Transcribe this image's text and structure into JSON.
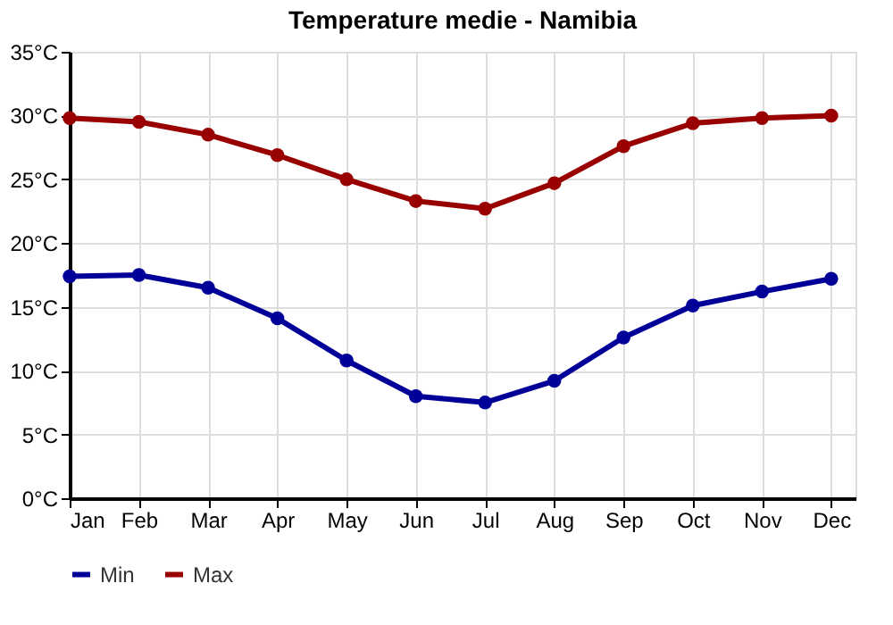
{
  "chart_data": {
    "type": "line",
    "title": "Temperature medie - Namibia",
    "categories": [
      "Jan",
      "Feb",
      "Mar",
      "Apr",
      "May",
      "Jun",
      "Jul",
      "Aug",
      "Sep",
      "Oct",
      "Nov",
      "Dec"
    ],
    "series": [
      {
        "name": "Min",
        "color": "#000099",
        "values": [
          17.4,
          17.5,
          16.5,
          14.1,
          10.8,
          8.0,
          7.5,
          9.2,
          12.6,
          15.1,
          16.2,
          17.2
        ]
      },
      {
        "name": "Max",
        "color": "#990000",
        "values": [
          29.8,
          29.5,
          28.5,
          26.9,
          25.0,
          23.3,
          22.7,
          24.7,
          27.6,
          29.4,
          29.8,
          30.0
        ]
      }
    ],
    "ylim": [
      0,
      35
    ],
    "yticks": [
      {
        "value": 0,
        "label": "0°C"
      },
      {
        "value": 5,
        "label": "5°C"
      },
      {
        "value": 10,
        "label": "10°C"
      },
      {
        "value": 15,
        "label": "15°C"
      },
      {
        "value": 20,
        "label": "20°C"
      },
      {
        "value": 25,
        "label": "25°C"
      },
      {
        "value": 30,
        "label": "30°C"
      },
      {
        "value": 35,
        "label": "35°C"
      }
    ],
    "grid": true,
    "legend": "bottom left",
    "marker": "circle",
    "line_style": "solid"
  }
}
